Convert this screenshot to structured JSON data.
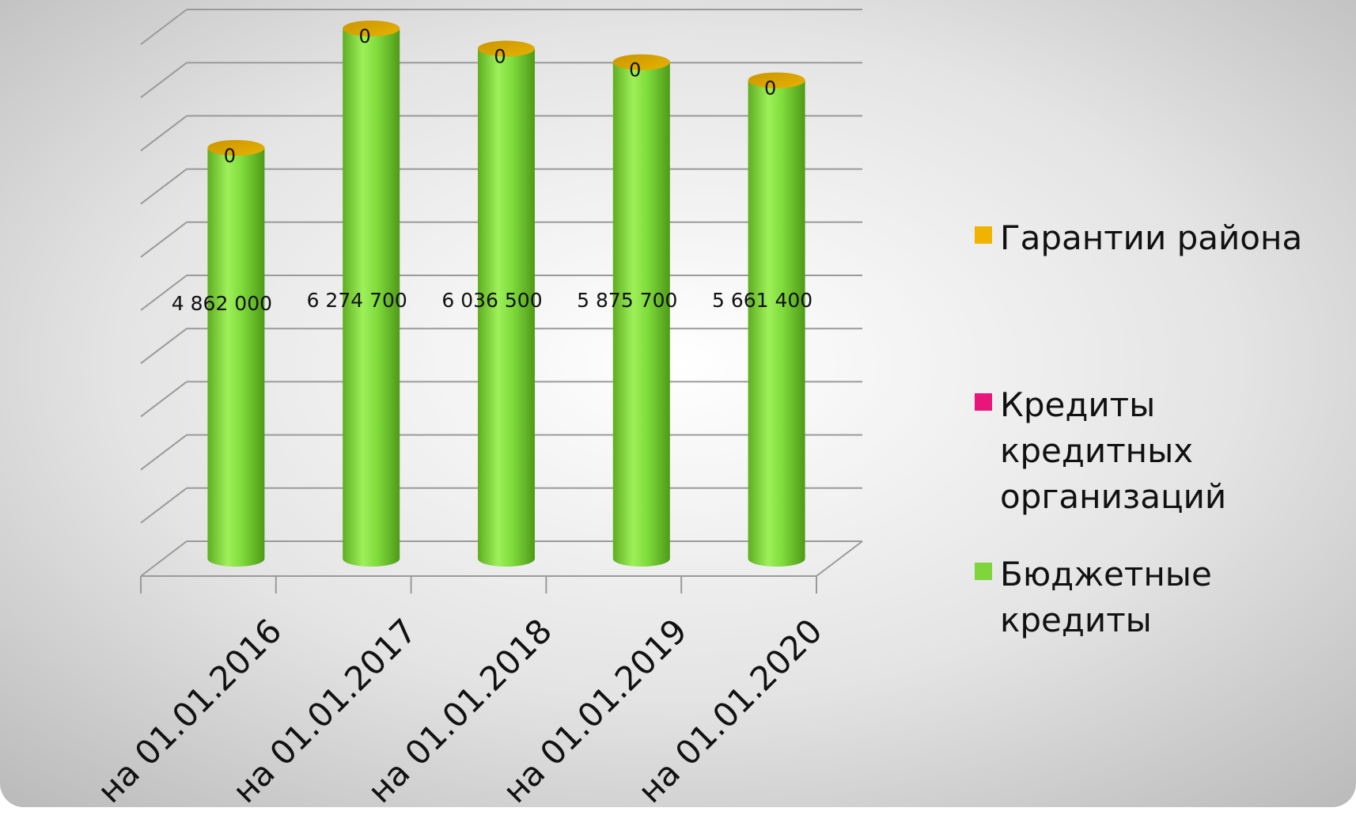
{
  "chart_data": {
    "type": "bar",
    "style": "3d-cylinder-stacked",
    "categories": [
      "на 01.01.2016",
      "на 01.01.2017",
      "на 01.01.2018",
      "на 01.01.2019",
      "на 01.01.2020"
    ],
    "series": [
      {
        "name": "Гарантии района",
        "color": "#F0B400",
        "values": [
          0,
          0,
          0,
          0,
          0
        ],
        "labels": [
          "0",
          "0",
          "0",
          "0",
          "0"
        ]
      },
      {
        "name": "Кредиты кредитных организаций",
        "color": "#E8157A",
        "values": [
          0,
          0,
          0,
          0,
          0
        ],
        "labels": [
          "",
          "",
          "",
          "",
          ""
        ]
      },
      {
        "name": "Бюджетные кредиты",
        "color": "#7ED63A",
        "values": [
          4862000,
          6274700,
          6036500,
          5875700,
          5661400
        ],
        "labels": [
          "4 862 000",
          "6 274 700",
          "6 036 500",
          "5 875 700",
          "5 661 400"
        ]
      }
    ],
    "legend_position": "right",
    "grid": true,
    "colors": {
      "cylinder_body": "#7ED63A",
      "cylinder_top": "#D9A000",
      "grid": "#9a9a9a"
    }
  }
}
